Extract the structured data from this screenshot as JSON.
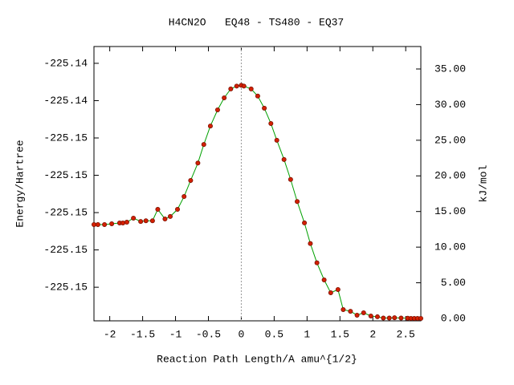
{
  "chart_data": {
    "type": "line",
    "title": "H4CN2O   EQ48 - TS480 - EQ37",
    "xlabel": "Reaction Path Length/A amu^{1/2}",
    "ylabel": "Energy/Hartree",
    "y2label": "kJ/mol",
    "xlim": [
      -2.24,
      2.73
    ],
    "xticks": [
      -2,
      -1.5,
      -1,
      -0.5,
      0,
      0.5,
      1,
      1.5,
      2,
      2.5
    ],
    "ylim": [
      -225.1558,
      -225.1411
    ],
    "yticks": [
      {
        "value": -225.142,
        "label": "-225.14"
      },
      {
        "value": -225.144,
        "label": "-225.14"
      },
      {
        "value": -225.146,
        "label": "-225.15"
      },
      {
        "value": -225.148,
        "label": "-225.15"
      },
      {
        "value": -225.15,
        "label": "-225.15"
      },
      {
        "value": -225.152,
        "label": "-225.15"
      },
      {
        "value": -225.154,
        "label": "-225.15"
      }
    ],
    "y2lim": [
      -0.34,
      38.15
    ],
    "y2ticks": [
      {
        "value": 0,
        "label": "0.00"
      },
      {
        "value": 5,
        "label": "5.00"
      },
      {
        "value": 10,
        "label": "10.00"
      },
      {
        "value": 15,
        "label": "15.00"
      },
      {
        "value": 20,
        "label": "20.00"
      },
      {
        "value": 25,
        "label": "25.00"
      },
      {
        "value": 30,
        "label": "30.00"
      },
      {
        "value": 35,
        "label": "35.00"
      }
    ],
    "vline_x": 0,
    "series": [
      {
        "axis": "y2",
        "color": "#00a000",
        "marker_color": "#d42000",
        "x": [
          -2.24,
          -2.18,
          -2.08,
          -1.97,
          -1.85,
          -1.8,
          -1.74,
          -1.64,
          -1.53,
          -1.45,
          -1.35,
          -1.27,
          -1.16,
          -1.08,
          -0.97,
          -0.87,
          -0.77,
          -0.66,
          -0.57,
          -0.47,
          -0.36,
          -0.26,
          -0.16,
          -0.07,
          0,
          0.04,
          0.15,
          0.25,
          0.35,
          0.45,
          0.54,
          0.65,
          0.75,
          0.85,
          0.96,
          1.05,
          1.15,
          1.26,
          1.36,
          1.47,
          1.55,
          1.66,
          1.76,
          1.86,
          1.97,
          2.07,
          2.16,
          2.25,
          2.33,
          2.43,
          2.53,
          2.58,
          2.63,
          2.68,
          2.73
        ],
        "values": [
          13.17,
          13.17,
          13.17,
          13.28,
          13.39,
          13.39,
          13.5,
          14.07,
          13.6,
          13.7,
          13.7,
          15.3,
          13.95,
          14.3,
          15.3,
          17.1,
          19.36,
          21.8,
          24.4,
          27.0,
          29.26,
          30.95,
          32.2,
          32.6,
          32.7,
          32.6,
          32.2,
          31.2,
          29.5,
          27.35,
          25.0,
          22.3,
          19.5,
          16.4,
          13.4,
          10.5,
          7.8,
          5.4,
          3.6,
          4.05,
          1.24,
          1.0,
          0.45,
          0.79,
          0.34,
          0.23,
          0.05,
          0.05,
          0.1,
          0.05,
          0.03,
          0.0,
          0.0,
          0.0,
          0.0
        ]
      }
    ]
  }
}
